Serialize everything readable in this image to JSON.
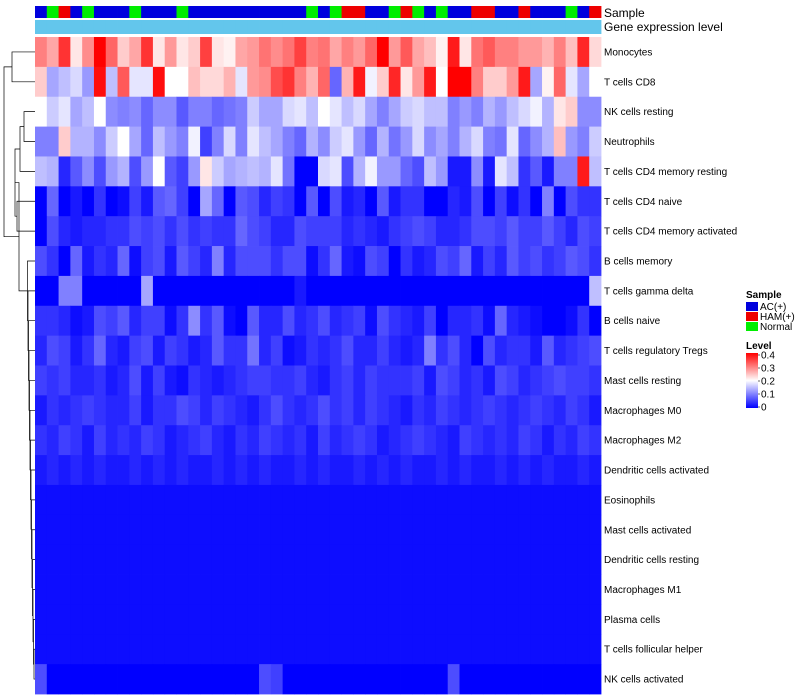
{
  "chart_data": {
    "type": "heatmap",
    "annotation_labels": [
      "Sample",
      "Gene expression level"
    ],
    "rows": [
      "Monocytes",
      "T cells CD8",
      "NK cells resting",
      "Neutrophils",
      "T cells CD4 memory resting",
      "T cells CD4 naive",
      "T cells CD4 memory activated",
      "B cells memory",
      "T cells gamma delta",
      "B cells naive",
      "T cells regulatory  Tregs",
      "Mast cells resting",
      "Macrophages M0",
      "Macrophages M2",
      "Dendritic cells activated",
      "Eosinophils",
      "Mast cells activated",
      "Dendritic cells resting",
      "Macrophages M1",
      "Plasma cells",
      "T cells follicular helper",
      "NK cells activated"
    ],
    "sample_groups": [
      "A",
      "N",
      "H",
      "A",
      "N",
      "A",
      "A",
      "A",
      "N",
      "A",
      "A",
      "A",
      "N",
      "A",
      "A",
      "A",
      "A",
      "A",
      "A",
      "A",
      "A",
      "A",
      "A",
      "N",
      "A",
      "N",
      "H",
      "H",
      "A",
      "A",
      "N",
      "H",
      "N",
      "A",
      "N",
      "A",
      "A",
      "H",
      "H",
      "A",
      "A",
      "H",
      "A",
      "A",
      "A",
      "N",
      "A",
      "H"
    ],
    "expression_level": [
      0.18,
      0.18,
      0.18,
      0.18,
      0.18,
      0.18,
      0.18,
      0.18,
      0.18,
      0.18,
      0.18,
      0.18,
      0.18,
      0.18,
      0.18,
      0.18,
      0.18,
      0.18,
      0.18,
      0.18,
      0.18,
      0.18,
      0.18,
      0.18,
      0.18,
      0.18,
      0.18,
      0.18,
      0.18,
      0.18,
      0.18,
      0.18,
      0.18,
      0.18,
      0.18,
      0.18,
      0.18,
      0.18,
      0.18,
      0.18,
      0.18,
      0.18,
      0.18,
      0.18,
      0.18,
      0.18,
      0.18,
      0.18
    ],
    "values": [
      [
        0.3,
        0.27,
        0.36,
        0.22,
        0.29,
        0.4,
        0.32,
        0.24,
        0.27,
        0.36,
        0.22,
        0.28,
        0.22,
        0.24,
        0.35,
        0.22,
        0.21,
        0.27,
        0.28,
        0.31,
        0.29,
        0.31,
        0.35,
        0.3,
        0.31,
        0.27,
        0.3,
        0.28,
        0.32,
        0.4,
        0.28,
        0.33,
        0.27,
        0.25,
        0.21,
        0.38,
        0.22,
        0.31,
        0.33,
        0.3,
        0.3,
        0.28,
        0.28,
        0.26,
        0.3,
        0.25,
        0.37,
        0.23
      ],
      [
        0.24,
        0.13,
        0.15,
        0.17,
        0.12,
        0.39,
        0.15,
        0.33,
        0.18,
        0.18,
        0.39,
        0.2,
        0.2,
        0.25,
        0.23,
        0.23,
        0.26,
        0.18,
        0.28,
        0.29,
        0.34,
        0.36,
        0.3,
        0.26,
        0.32,
        0.08,
        0.26,
        0.38,
        0.19,
        0.24,
        0.37,
        0.22,
        0.28,
        0.38,
        0.2,
        0.4,
        0.4,
        0.3,
        0.24,
        0.24,
        0.28,
        0.38,
        0.13,
        0.21,
        0.32,
        0.18,
        0.13,
        0.2
      ],
      [
        0.2,
        0.16,
        0.18,
        0.13,
        0.15,
        0.2,
        0.11,
        0.1,
        0.11,
        0.08,
        0.11,
        0.11,
        0.07,
        0.1,
        0.1,
        0.08,
        0.09,
        0.1,
        0.16,
        0.13,
        0.13,
        0.17,
        0.18,
        0.15,
        0.2,
        0.18,
        0.15,
        0.17,
        0.13,
        0.1,
        0.13,
        0.16,
        0.17,
        0.15,
        0.15,
        0.1,
        0.12,
        0.1,
        0.14,
        0.12,
        0.15,
        0.17,
        0.19,
        0.14,
        0.22,
        0.24,
        0.11,
        0.11
      ],
      [
        0.1,
        0.1,
        0.24,
        0.14,
        0.14,
        0.11,
        0.16,
        0.2,
        0.13,
        0.08,
        0.15,
        0.12,
        0.1,
        0.19,
        0.05,
        0.1,
        0.17,
        0.1,
        0.18,
        0.15,
        0.13,
        0.1,
        0.08,
        0.14,
        0.11,
        0.16,
        0.18,
        0.12,
        0.08,
        0.14,
        0.09,
        0.12,
        0.17,
        0.11,
        0.13,
        0.1,
        0.14,
        0.17,
        0.1,
        0.09,
        0.18,
        0.08,
        0.11,
        0.14,
        0.25,
        0.12,
        0.1,
        0.16
      ],
      [
        0.15,
        0.14,
        0.03,
        0.07,
        0.11,
        0.06,
        0.12,
        0.14,
        0.06,
        0.12,
        0.2,
        0.07,
        0.05,
        0.12,
        0.22,
        0.16,
        0.13,
        0.14,
        0.15,
        0.14,
        0.18,
        0.09,
        0.0,
        0.0,
        0.17,
        0.18,
        0.06,
        0.14,
        0.19,
        0.12,
        0.12,
        0.08,
        0.06,
        0.15,
        0.12,
        0.02,
        0.02,
        0.11,
        0.02,
        0.18,
        0.15,
        0.04,
        0.07,
        0.02,
        0.1,
        0.1,
        0.38,
        0.15
      ],
      [
        0.0,
        0.08,
        0.0,
        0.02,
        0.0,
        0.04,
        0.0,
        0.01,
        0.05,
        0.02,
        0.07,
        0.08,
        0.05,
        0.0,
        0.13,
        0.08,
        0.0,
        0.07,
        0.06,
        0.03,
        0.05,
        0.04,
        0.0,
        0.07,
        0.0,
        0.06,
        0.02,
        0.03,
        0.0,
        0.07,
        0.02,
        0.04,
        0.04,
        0.0,
        0.0,
        0.03,
        0.02,
        0.06,
        0.0,
        0.05,
        0.01,
        0.04,
        0.0,
        0.1,
        0.0,
        0.06,
        0.04,
        0.04
      ],
      [
        0.0,
        0.06,
        0.03,
        0.02,
        0.03,
        0.03,
        0.04,
        0.04,
        0.06,
        0.05,
        0.06,
        0.04,
        0.06,
        0.04,
        0.05,
        0.04,
        0.04,
        0.08,
        0.06,
        0.05,
        0.03,
        0.03,
        0.06,
        0.05,
        0.05,
        0.05,
        0.03,
        0.04,
        0.03,
        0.02,
        0.04,
        0.05,
        0.06,
        0.05,
        0.03,
        0.03,
        0.04,
        0.06,
        0.06,
        0.05,
        0.07,
        0.05,
        0.05,
        0.07,
        0.05,
        0.03,
        0.06,
        0.05
      ],
      [
        0.06,
        0.04,
        0.0,
        0.08,
        0.02,
        0.04,
        0.03,
        0.08,
        0.01,
        0.05,
        0.06,
        0.02,
        0.07,
        0.05,
        0.03,
        0.1,
        0.03,
        0.06,
        0.06,
        0.06,
        0.04,
        0.06,
        0.06,
        0.01,
        0.04,
        0.08,
        0.02,
        0.01,
        0.06,
        0.05,
        0.0,
        0.04,
        0.02,
        0.03,
        0.06,
        0.05,
        0.08,
        0.02,
        0.05,
        0.03,
        0.07,
        0.05,
        0.06,
        0.04,
        0.05,
        0.07,
        0.06,
        0.04
      ],
      [
        0.0,
        0.0,
        0.1,
        0.1,
        0.0,
        0.0,
        0.0,
        0.0,
        0.0,
        0.13,
        0.0,
        0.0,
        0.0,
        0.0,
        0.0,
        0.0,
        0.0,
        0.0,
        0.0,
        0.0,
        0.0,
        0.0,
        0.02,
        0.0,
        0.0,
        0.0,
        0.0,
        0.0,
        0.0,
        0.0,
        0.0,
        0.0,
        0.0,
        0.0,
        0.0,
        0.0,
        0.0,
        0.0,
        0.0,
        0.0,
        0.0,
        0.0,
        0.0,
        0.0,
        0.0,
        0.0,
        0.0,
        0.15
      ],
      [
        0.04,
        0.04,
        0.03,
        0.01,
        0.02,
        0.06,
        0.05,
        0.07,
        0.03,
        0.05,
        0.05,
        0.01,
        0.04,
        0.11,
        0.04,
        0.07,
        0.01,
        0.0,
        0.07,
        0.03,
        0.03,
        0.06,
        0.03,
        0.04,
        0.06,
        0.03,
        0.04,
        0.05,
        0.01,
        0.06,
        0.04,
        0.03,
        0.02,
        0.05,
        0.0,
        0.03,
        0.03,
        0.04,
        0.01,
        0.08,
        0.03,
        0.02,
        0.01,
        0.0,
        0.0,
        0.01,
        0.04,
        0.0
      ],
      [
        0.03,
        0.06,
        0.05,
        0.02,
        0.04,
        0.08,
        0.03,
        0.02,
        0.05,
        0.06,
        0.02,
        0.05,
        0.04,
        0.02,
        0.03,
        0.07,
        0.04,
        0.04,
        0.09,
        0.03,
        0.05,
        0.01,
        0.02,
        0.04,
        0.03,
        0.04,
        0.06,
        0.03,
        0.03,
        0.05,
        0.03,
        0.02,
        0.03,
        0.1,
        0.04,
        0.06,
        0.03,
        0.0,
        0.06,
        0.03,
        0.04,
        0.04,
        0.02,
        0.07,
        0.03,
        0.04,
        0.05,
        0.06
      ],
      [
        0.05,
        0.04,
        0.05,
        0.03,
        0.03,
        0.04,
        0.02,
        0.03,
        0.06,
        0.02,
        0.05,
        0.02,
        0.01,
        0.04,
        0.03,
        0.02,
        0.03,
        0.04,
        0.05,
        0.05,
        0.04,
        0.04,
        0.05,
        0.03,
        0.02,
        0.04,
        0.05,
        0.03,
        0.05,
        0.04,
        0.04,
        0.04,
        0.05,
        0.02,
        0.06,
        0.05,
        0.03,
        0.04,
        0.02,
        0.06,
        0.05,
        0.03,
        0.04,
        0.05,
        0.06,
        0.05,
        0.05,
        0.04
      ],
      [
        0.02,
        0.04,
        0.03,
        0.04,
        0.05,
        0.04,
        0.03,
        0.03,
        0.05,
        0.02,
        0.04,
        0.04,
        0.06,
        0.05,
        0.03,
        0.05,
        0.04,
        0.03,
        0.02,
        0.04,
        0.06,
        0.04,
        0.03,
        0.04,
        0.06,
        0.04,
        0.05,
        0.03,
        0.05,
        0.04,
        0.03,
        0.02,
        0.04,
        0.03,
        0.05,
        0.04,
        0.03,
        0.04,
        0.05,
        0.04,
        0.03,
        0.04,
        0.05,
        0.04,
        0.03,
        0.05,
        0.04,
        0.02
      ],
      [
        0.04,
        0.03,
        0.05,
        0.04,
        0.02,
        0.05,
        0.03,
        0.04,
        0.03,
        0.05,
        0.04,
        0.02,
        0.03,
        0.04,
        0.05,
        0.03,
        0.02,
        0.04,
        0.03,
        0.05,
        0.04,
        0.03,
        0.04,
        0.02,
        0.05,
        0.03,
        0.04,
        0.05,
        0.04,
        0.02,
        0.03,
        0.04,
        0.05,
        0.04,
        0.03,
        0.02,
        0.05,
        0.04,
        0.03,
        0.04,
        0.03,
        0.05,
        0.04,
        0.02,
        0.04,
        0.03,
        0.05,
        0.04
      ],
      [
        0.02,
        0.03,
        0.02,
        0.03,
        0.02,
        0.03,
        0.02,
        0.02,
        0.03,
        0.02,
        0.03,
        0.02,
        0.03,
        0.02,
        0.02,
        0.03,
        0.02,
        0.03,
        0.02,
        0.03,
        0.02,
        0.02,
        0.03,
        0.02,
        0.03,
        0.02,
        0.02,
        0.03,
        0.02,
        0.03,
        0.02,
        0.03,
        0.02,
        0.02,
        0.03,
        0.02,
        0.03,
        0.02,
        0.02,
        0.03,
        0.02,
        0.03,
        0.02,
        0.03,
        0.02,
        0.02,
        0.03,
        0.02
      ],
      [
        0.01,
        0.01,
        0.01,
        0.01,
        0.01,
        0.01,
        0.01,
        0.01,
        0.01,
        0.01,
        0.01,
        0.01,
        0.01,
        0.01,
        0.01,
        0.01,
        0.01,
        0.01,
        0.01,
        0.01,
        0.01,
        0.01,
        0.01,
        0.01,
        0.01,
        0.01,
        0.01,
        0.01,
        0.01,
        0.01,
        0.01,
        0.01,
        0.01,
        0.01,
        0.01,
        0.01,
        0.01,
        0.01,
        0.01,
        0.01,
        0.01,
        0.01,
        0.01,
        0.01,
        0.01,
        0.01,
        0.01,
        0.01
      ],
      [
        0.01,
        0.01,
        0.01,
        0.01,
        0.01,
        0.01,
        0.01,
        0.01,
        0.01,
        0.01,
        0.01,
        0.01,
        0.01,
        0.01,
        0.01,
        0.01,
        0.01,
        0.01,
        0.01,
        0.01,
        0.01,
        0.01,
        0.01,
        0.01,
        0.01,
        0.01,
        0.01,
        0.01,
        0.01,
        0.01,
        0.01,
        0.01,
        0.01,
        0.01,
        0.01,
        0.01,
        0.01,
        0.01,
        0.01,
        0.01,
        0.01,
        0.01,
        0.01,
        0.01,
        0.01,
        0.01,
        0.01,
        0.01
      ],
      [
        0.01,
        0.01,
        0.01,
        0.01,
        0.01,
        0.01,
        0.01,
        0.01,
        0.01,
        0.01,
        0.01,
        0.01,
        0.01,
        0.01,
        0.01,
        0.01,
        0.01,
        0.01,
        0.01,
        0.01,
        0.01,
        0.01,
        0.01,
        0.01,
        0.01,
        0.01,
        0.01,
        0.01,
        0.01,
        0.01,
        0.01,
        0.01,
        0.01,
        0.01,
        0.01,
        0.01,
        0.01,
        0.01,
        0.01,
        0.01,
        0.01,
        0.01,
        0.01,
        0.01,
        0.01,
        0.01,
        0.01,
        0.01
      ],
      [
        0.01,
        0.01,
        0.01,
        0.01,
        0.01,
        0.01,
        0.01,
        0.01,
        0.01,
        0.01,
        0.01,
        0.01,
        0.01,
        0.01,
        0.01,
        0.01,
        0.01,
        0.01,
        0.01,
        0.01,
        0.01,
        0.01,
        0.01,
        0.01,
        0.01,
        0.01,
        0.01,
        0.01,
        0.01,
        0.01,
        0.01,
        0.01,
        0.01,
        0.01,
        0.01,
        0.01,
        0.01,
        0.01,
        0.01,
        0.01,
        0.01,
        0.01,
        0.01,
        0.01,
        0.01,
        0.01,
        0.01,
        0.01
      ],
      [
        0.01,
        0.01,
        0.01,
        0.01,
        0.01,
        0.01,
        0.01,
        0.01,
        0.01,
        0.01,
        0.01,
        0.01,
        0.01,
        0.01,
        0.01,
        0.01,
        0.01,
        0.01,
        0.01,
        0.01,
        0.01,
        0.01,
        0.01,
        0.01,
        0.01,
        0.01,
        0.01,
        0.01,
        0.01,
        0.01,
        0.01,
        0.01,
        0.01,
        0.01,
        0.01,
        0.01,
        0.01,
        0.01,
        0.01,
        0.01,
        0.01,
        0.01,
        0.01,
        0.01,
        0.01,
        0.01,
        0.01,
        0.01
      ],
      [
        0.01,
        0.01,
        0.01,
        0.01,
        0.01,
        0.01,
        0.01,
        0.01,
        0.01,
        0.01,
        0.01,
        0.01,
        0.01,
        0.01,
        0.01,
        0.01,
        0.01,
        0.01,
        0.01,
        0.01,
        0.01,
        0.01,
        0.01,
        0.01,
        0.01,
        0.01,
        0.01,
        0.01,
        0.01,
        0.01,
        0.01,
        0.01,
        0.01,
        0.01,
        0.01,
        0.01,
        0.01,
        0.01,
        0.01,
        0.01,
        0.01,
        0.01,
        0.01,
        0.01,
        0.01,
        0.01,
        0.01,
        0.01
      ],
      [
        0.06,
        0.0,
        0.0,
        0.0,
        0.0,
        0.0,
        0.0,
        0.0,
        0.0,
        0.0,
        0.0,
        0.0,
        0.0,
        0.0,
        0.0,
        0.0,
        0.0,
        0.0,
        0.0,
        0.06,
        0.05,
        0.0,
        0.0,
        0.0,
        0.0,
        0.0,
        0.0,
        0.0,
        0.0,
        0.0,
        0.0,
        0.0,
        0.0,
        0.0,
        0.0,
        0.06,
        0.0,
        0.0,
        0.0,
        0.0,
        0.0,
        0.0,
        0.0,
        0.0,
        0.0,
        0.0,
        0.0,
        0.0
      ]
    ],
    "legend": {
      "sample_title": "Sample",
      "sample_entries": [
        {
          "code": "A",
          "label": "AC(+)",
          "color": "#0000dd"
        },
        {
          "code": "H",
          "label": "HAM(+)",
          "color": "#ee0000"
        },
        {
          "code": "N",
          "label": "Normal",
          "color": "#00ee00"
        }
      ],
      "level_title": "Level",
      "level_ticks": [
        "0.4",
        "0.3",
        "0.2",
        "0.1",
        "0"
      ],
      "level_range": [
        0,
        0.4
      ]
    },
    "colors": {
      "low": "#0000ff",
      "mid": "#ffffff",
      "high": "#ff0000",
      "expression_bar": "#63c6ec"
    }
  }
}
